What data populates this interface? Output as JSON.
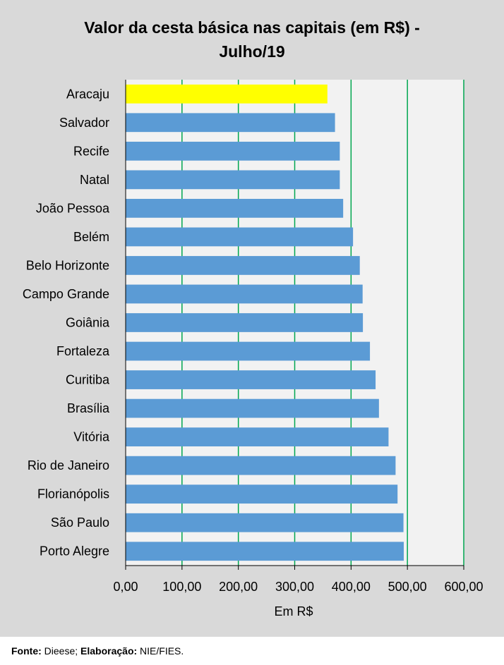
{
  "chart_data": {
    "type": "bar",
    "orientation": "horizontal",
    "title_line1": "Valor da cesta básica nas capitais (em R$) -",
    "title_line2": "Julho/19",
    "xlabel": "Em R$",
    "ylabel": "",
    "xlim": [
      0,
      600
    ],
    "xticks": [
      "0,00",
      "100,00",
      "200,00",
      "300,00",
      "400,00",
      "500,00",
      "600,00"
    ],
    "xtick_values": [
      0,
      100,
      200,
      300,
      400,
      500,
      600
    ],
    "grid": "vertical",
    "grid_color": "#00a650",
    "plot_bg": "#f2f2f2",
    "categories": [
      "Aracaju",
      "Salvador",
      "Recife",
      "Natal",
      "João Pessoa",
      "Belém",
      "Belo Horizonte",
      "Campo Grande",
      "Goiânia",
      "Fortaleza",
      "Curitiba",
      "Brasília",
      "Vitória",
      "Rio de Janeiro",
      "Florianópolis",
      "São Paulo",
      "Porto Alegre"
    ],
    "values": [
      358.0,
      371.5,
      380.0,
      380.0,
      386.0,
      403.5,
      415.5,
      420.5,
      421.0,
      433.5,
      443.5,
      449.5,
      466.5,
      479.0,
      482.5,
      493.0,
      493.5
    ],
    "highlight_category": "Aracaju",
    "bar_color": "#5b9bd5",
    "highlight_color": "#ffff00"
  },
  "footer": {
    "source_label": "Fonte:",
    "source_value": " Dieese; ",
    "credit_label": "Elaboração:",
    "credit_value": " NIE/FIES."
  }
}
